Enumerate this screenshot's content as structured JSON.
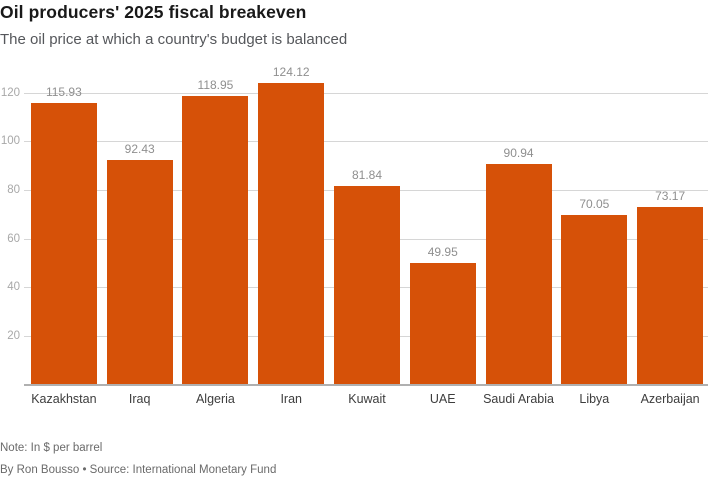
{
  "header": {
    "title": "Oil producers' 2025 fiscal breakeven",
    "subtitle": "The oil price at which a country's budget is balanced"
  },
  "chart_data": {
    "type": "bar",
    "title": "Oil producers' 2025 fiscal breakeven",
    "subtitle": "The oil price at which a country's budget is balanced",
    "categories": [
      "Kazakhstan",
      "Iraq",
      "Algeria",
      "Iran",
      "Kuwait",
      "UAE",
      "Saudi Arabia",
      "Libya",
      "Azerbaijan"
    ],
    "values": [
      115.93,
      92.43,
      118.95,
      124.12,
      81.84,
      49.95,
      90.94,
      70.05,
      73.17
    ],
    "value_labels": [
      "115.93",
      "92.43",
      "118.95",
      "124.12",
      "81.84",
      "49.95",
      "90.94",
      "70.05",
      "73.17"
    ],
    "xlabel": "",
    "ylabel": "",
    "unit": "$ per barrel",
    "ylim": [
      0,
      128
    ],
    "yticks": [
      20,
      40,
      60,
      80,
      100,
      120
    ],
    "grid": true,
    "legend": false,
    "bar_color": "#d65108",
    "gridline_color": "#d6d6d6",
    "baseline_color": "#b0b0b0"
  },
  "footer": {
    "note": "Note: In $ per barrel",
    "byline": "By Ron Bousso • Source: International Monetary Fund"
  }
}
